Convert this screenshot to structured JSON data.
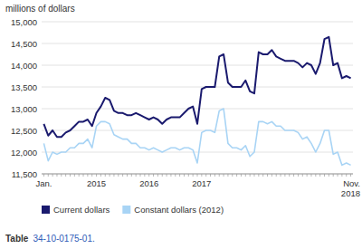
{
  "chart_data": {
    "type": "line",
    "y_label": "millions of dollars",
    "categories": [
      "Jan.",
      null,
      null,
      null,
      null,
      null,
      null,
      null,
      null,
      null,
      null,
      null,
      "2015",
      null,
      null,
      null,
      null,
      null,
      null,
      null,
      null,
      null,
      null,
      null,
      "2016",
      null,
      null,
      null,
      null,
      null,
      null,
      null,
      null,
      null,
      null,
      null,
      "2017",
      null,
      null,
      null,
      null,
      null,
      null,
      null,
      null,
      null,
      null,
      null,
      null,
      null,
      null,
      null,
      null,
      null,
      null,
      null,
      null,
      null,
      null,
      null,
      null,
      null,
      null,
      null,
      null,
      null,
      null,
      null,
      null,
      null,
      "Nov.\n2018"
    ],
    "series": [
      {
        "name": "Current dollars",
        "color": "#1a1a6e",
        "values": [
          12650,
          12380,
          12500,
          12350,
          12350,
          12450,
          12500,
          12600,
          12700,
          12700,
          12750,
          12600,
          12900,
          13050,
          13250,
          13200,
          12950,
          12900,
          12900,
          12850,
          12850,
          12900,
          12850,
          12800,
          12750,
          12800,
          12750,
          12650,
          12750,
          12800,
          12800,
          12800,
          12900,
          13000,
          13050,
          12650,
          13450,
          13500,
          13500,
          13500,
          14200,
          14250,
          13600,
          13500,
          13500,
          13500,
          13650,
          13400,
          13350,
          14300,
          14250,
          14250,
          14350,
          14200,
          14150,
          14100,
          14100,
          14100,
          14050,
          13950,
          14050,
          14000,
          13800,
          14050,
          14600,
          14650,
          14000,
          14050,
          13700,
          13750,
          13700
        ]
      },
      {
        "name": "Constant dollars (2012)",
        "color": "#a8d4f5",
        "values": [
          12200,
          11800,
          12000,
          11950,
          12000,
          12000,
          12100,
          12100,
          12200,
          12200,
          12300,
          12100,
          12600,
          12700,
          12700,
          12650,
          12400,
          12350,
          12300,
          12300,
          12200,
          12200,
          12100,
          12100,
          12050,
          12100,
          12050,
          12000,
          12050,
          12100,
          12100,
          12050,
          12100,
          12100,
          12050,
          11750,
          12450,
          12500,
          12500,
          12450,
          12950,
          13000,
          12200,
          12100,
          12100,
          12050,
          12150,
          11900,
          12000,
          12700,
          12700,
          12650,
          12700,
          12600,
          12600,
          12500,
          12500,
          12500,
          12450,
          12300,
          12350,
          12200,
          12000,
          12200,
          12500,
          12500,
          11950,
          12000,
          11700,
          11750,
          11700
        ]
      }
    ],
    "ylim": [
      11500,
      15000
    ],
    "yticks": [
      {
        "value": 11500,
        "label": "11,500"
      },
      {
        "value": 12000,
        "label": "12,000"
      },
      {
        "value": 12500,
        "label": "12,500"
      },
      {
        "value": 13000,
        "label": "13,000"
      },
      {
        "value": 13500,
        "label": "13,500"
      },
      {
        "value": 14000,
        "label": "14,000"
      },
      {
        "value": 14500,
        "label": "14,500"
      },
      {
        "value": 15000,
        "label": "15,000"
      }
    ],
    "grid": true,
    "legend": "bottom left",
    "annotations": [
      "Table",
      "34-10-0175-01."
    ]
  }
}
